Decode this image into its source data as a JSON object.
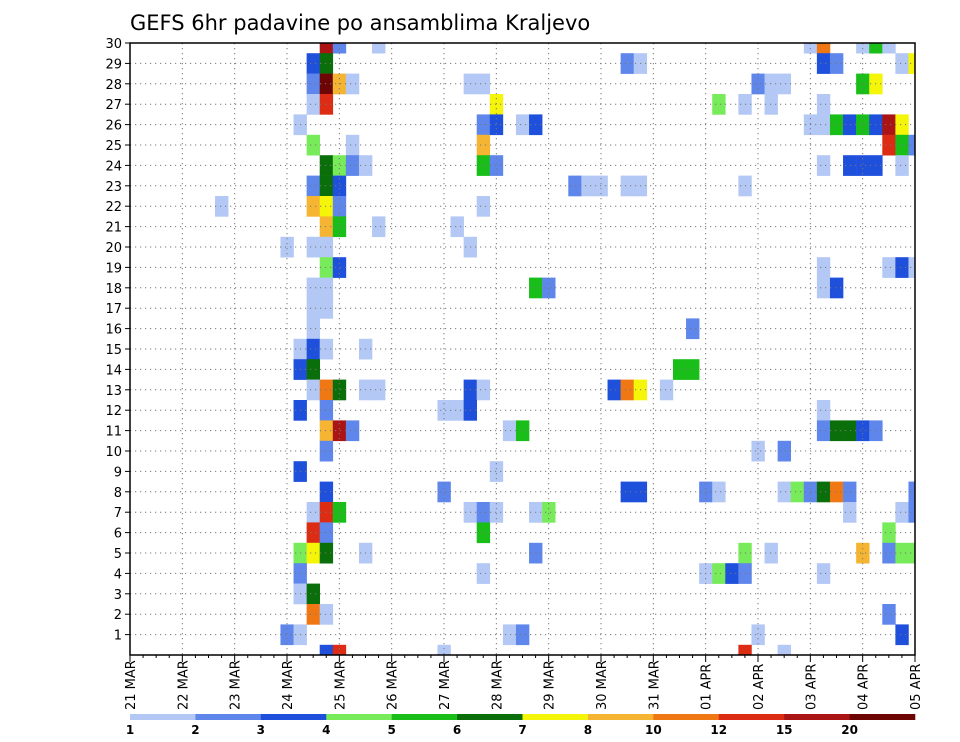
{
  "chart_data": {
    "type": "heatmap",
    "title": "GEFS 6hr padavine po ansamblima Kraljevo",
    "xlabel": "",
    "ylabel": "",
    "x_tick_labels": [
      "21 MAR",
      "22 MAR",
      "23 MAR",
      "24 MAR",
      "25 MAR",
      "26 MAR",
      "27 MAR",
      "28 MAR",
      "29 MAR",
      "30 MAR",
      "31 MAR",
      "01 APR",
      "02 APR",
      "03 APR",
      "04 APR",
      "05 APR"
    ],
    "y_tick_labels": [
      "1",
      "2",
      "3",
      "4",
      "5",
      "6",
      "7",
      "8",
      "9",
      "10",
      "11",
      "12",
      "13",
      "14",
      "15",
      "16",
      "17",
      "18",
      "19",
      "20",
      "21",
      "22",
      "23",
      "24",
      "25",
      "26",
      "27",
      "28",
      "29",
      "30"
    ],
    "xlim_steps": [
      0,
      60
    ],
    "ylim_members": [
      0,
      30
    ],
    "grid": "dotted",
    "legend_placement": "bottom",
    "legend": {
      "levels": [
        "1",
        "2",
        "3",
        "4",
        "5",
        "6",
        "7",
        "8",
        "10",
        "12",
        "15",
        "20"
      ],
      "colors": [
        "#b4c8f5",
        "#5f87eb",
        "#1e50dc",
        "#78eb5a",
        "#19be19",
        "#0a6e0a",
        "#f5f50a",
        "#f5b432",
        "#f07814",
        "#dc2d14",
        "#aa1414",
        "#6e0505"
      ]
    },
    "data_format": "cells: [member_row (0 = below row 1), time_step (6h from 21 MAR 00), level_index into legend.colors]",
    "cells": [
      [
        30,
        15,
        10
      ],
      [
        30,
        16,
        1
      ],
      [
        30,
        19,
        0
      ],
      [
        30,
        52,
        0
      ],
      [
        30,
        53,
        8
      ],
      [
        30,
        56,
        0
      ],
      [
        30,
        57,
        4
      ],
      [
        30,
        58,
        0
      ],
      [
        29,
        14,
        2
      ],
      [
        29,
        15,
        5
      ],
      [
        29,
        38,
        1
      ],
      [
        29,
        39,
        0
      ],
      [
        29,
        53,
        2
      ],
      [
        29,
        54,
        1
      ],
      [
        29,
        59,
        0
      ],
      [
        29,
        60,
        6
      ],
      [
        28,
        14,
        1
      ],
      [
        28,
        15,
        11
      ],
      [
        28,
        16,
        7
      ],
      [
        28,
        17,
        0
      ],
      [
        28,
        26,
        0
      ],
      [
        28,
        27,
        0
      ],
      [
        28,
        48,
        1
      ],
      [
        28,
        49,
        0
      ],
      [
        28,
        50,
        0
      ],
      [
        28,
        56,
        4
      ],
      [
        28,
        57,
        6
      ],
      [
        27,
        14,
        0
      ],
      [
        27,
        15,
        9
      ],
      [
        27,
        28,
        6
      ],
      [
        27,
        45,
        3
      ],
      [
        27,
        47,
        0
      ],
      [
        27,
        49,
        0
      ],
      [
        27,
        53,
        0
      ],
      [
        26,
        13,
        0
      ],
      [
        26,
        27,
        1
      ],
      [
        26,
        28,
        2
      ],
      [
        26,
        30,
        0
      ],
      [
        26,
        31,
        2
      ],
      [
        26,
        52,
        0
      ],
      [
        26,
        53,
        0
      ],
      [
        26,
        54,
        4
      ],
      [
        26,
        55,
        2
      ],
      [
        26,
        56,
        4
      ],
      [
        26,
        57,
        2
      ],
      [
        26,
        58,
        10
      ],
      [
        26,
        59,
        6
      ],
      [
        25,
        14,
        3
      ],
      [
        25,
        17,
        0
      ],
      [
        25,
        27,
        7
      ],
      [
        25,
        58,
        9
      ],
      [
        25,
        59,
        4
      ],
      [
        25,
        60,
        1
      ],
      [
        24,
        15,
        5
      ],
      [
        24,
        16,
        3
      ],
      [
        24,
        17,
        1
      ],
      [
        24,
        18,
        0
      ],
      [
        24,
        27,
        4
      ],
      [
        24,
        28,
        1
      ],
      [
        24,
        53,
        0
      ],
      [
        24,
        55,
        2
      ],
      [
        24,
        56,
        2
      ],
      [
        24,
        57,
        2
      ],
      [
        24,
        59,
        0
      ],
      [
        23,
        14,
        1
      ],
      [
        23,
        15,
        5
      ],
      [
        23,
        16,
        2
      ],
      [
        23,
        34,
        1
      ],
      [
        23,
        35,
        0
      ],
      [
        23,
        36,
        0
      ],
      [
        23,
        38,
        0
      ],
      [
        23,
        39,
        0
      ],
      [
        23,
        47,
        0
      ],
      [
        22,
        7,
        0
      ],
      [
        22,
        14,
        7
      ],
      [
        22,
        15,
        6
      ],
      [
        22,
        16,
        1
      ],
      [
        22,
        27,
        0
      ],
      [
        21,
        15,
        7
      ],
      [
        21,
        16,
        4
      ],
      [
        21,
        19,
        0
      ],
      [
        21,
        25,
        0
      ],
      [
        20,
        12,
        0
      ],
      [
        20,
        14,
        0
      ],
      [
        20,
        15,
        0
      ],
      [
        20,
        26,
        0
      ],
      [
        19,
        15,
        3
      ],
      [
        19,
        16,
        2
      ],
      [
        19,
        53,
        0
      ],
      [
        19,
        58,
        0
      ],
      [
        19,
        59,
        2
      ],
      [
        19,
        60,
        0
      ],
      [
        18,
        14,
        0
      ],
      [
        18,
        15,
        0
      ],
      [
        18,
        31,
        4
      ],
      [
        18,
        32,
        1
      ],
      [
        18,
        53,
        0
      ],
      [
        18,
        54,
        2
      ],
      [
        17,
        14,
        0
      ],
      [
        17,
        15,
        0
      ],
      [
        16,
        14,
        0
      ],
      [
        16,
        43,
        1
      ],
      [
        15,
        13,
        0
      ],
      [
        15,
        14,
        2
      ],
      [
        15,
        15,
        0
      ],
      [
        15,
        18,
        0
      ],
      [
        14,
        13,
        2
      ],
      [
        14,
        14,
        5
      ],
      [
        14,
        42,
        4
      ],
      [
        14,
        43,
        4
      ],
      [
        13,
        14,
        0
      ],
      [
        13,
        15,
        8
      ],
      [
        13,
        16,
        5
      ],
      [
        13,
        18,
        0
      ],
      [
        13,
        19,
        0
      ],
      [
        13,
        26,
        2
      ],
      [
        13,
        27,
        0
      ],
      [
        13,
        37,
        2
      ],
      [
        13,
        38,
        8
      ],
      [
        13,
        39,
        6
      ],
      [
        13,
        41,
        0
      ],
      [
        12,
        13,
        2
      ],
      [
        12,
        15,
        1
      ],
      [
        12,
        24,
        0
      ],
      [
        12,
        25,
        0
      ],
      [
        12,
        26,
        2
      ],
      [
        12,
        53,
        0
      ],
      [
        11,
        15,
        7
      ],
      [
        11,
        16,
        10
      ],
      [
        11,
        17,
        1
      ],
      [
        11,
        29,
        0
      ],
      [
        11,
        30,
        4
      ],
      [
        11,
        53,
        1
      ],
      [
        11,
        54,
        5
      ],
      [
        11,
        55,
        5
      ],
      [
        11,
        56,
        2
      ],
      [
        11,
        57,
        1
      ],
      [
        10,
        15,
        1
      ],
      [
        10,
        48,
        0
      ],
      [
        10,
        50,
        1
      ],
      [
        9,
        13,
        2
      ],
      [
        9,
        28,
        0
      ],
      [
        8,
        15,
        2
      ],
      [
        8,
        24,
        1
      ],
      [
        8,
        38,
        2
      ],
      [
        8,
        39,
        2
      ],
      [
        8,
        44,
        1
      ],
      [
        8,
        45,
        0
      ],
      [
        8,
        50,
        0
      ],
      [
        8,
        51,
        3
      ],
      [
        8,
        52,
        1
      ],
      [
        8,
        53,
        5
      ],
      [
        8,
        54,
        8
      ],
      [
        8,
        55,
        1
      ],
      [
        8,
        60,
        1
      ],
      [
        7,
        14,
        0
      ],
      [
        7,
        15,
        9
      ],
      [
        7,
        16,
        4
      ],
      [
        7,
        26,
        0
      ],
      [
        7,
        27,
        1
      ],
      [
        7,
        28,
        0
      ],
      [
        7,
        31,
        0
      ],
      [
        7,
        32,
        3
      ],
      [
        7,
        55,
        0
      ],
      [
        7,
        59,
        0
      ],
      [
        7,
        60,
        1
      ],
      [
        6,
        14,
        9
      ],
      [
        6,
        15,
        1
      ],
      [
        6,
        27,
        4
      ],
      [
        6,
        58,
        3
      ],
      [
        5,
        13,
        3
      ],
      [
        5,
        14,
        6
      ],
      [
        5,
        15,
        5
      ],
      [
        5,
        18,
        0
      ],
      [
        5,
        31,
        1
      ],
      [
        5,
        47,
        3
      ],
      [
        5,
        49,
        0
      ],
      [
        5,
        56,
        7
      ],
      [
        5,
        58,
        1
      ],
      [
        5,
        59,
        3
      ],
      [
        5,
        60,
        3
      ],
      [
        4,
        13,
        1
      ],
      [
        4,
        27,
        0
      ],
      [
        4,
        44,
        0
      ],
      [
        4,
        45,
        3
      ],
      [
        4,
        46,
        2
      ],
      [
        4,
        47,
        1
      ],
      [
        4,
        53,
        0
      ],
      [
        3,
        13,
        0
      ],
      [
        3,
        14,
        5
      ],
      [
        2,
        14,
        8
      ],
      [
        2,
        15,
        0
      ],
      [
        2,
        58,
        1
      ],
      [
        1,
        12,
        1
      ],
      [
        1,
        13,
        0
      ],
      [
        1,
        29,
        0
      ],
      [
        1,
        30,
        1
      ],
      [
        1,
        48,
        0
      ],
      [
        1,
        59,
        2
      ],
      [
        0,
        15,
        2
      ],
      [
        0,
        16,
        9
      ],
      [
        0,
        24,
        0
      ],
      [
        0,
        47,
        9
      ],
      [
        0,
        50,
        0
      ]
    ]
  }
}
